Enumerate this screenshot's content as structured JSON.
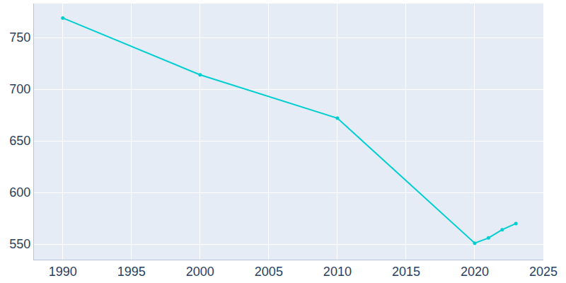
{
  "chart_data": {
    "type": "line",
    "x": [
      1990,
      2000,
      2010,
      2020,
      2021,
      2022,
      2023
    ],
    "values": [
      769,
      714,
      672,
      551,
      556,
      564,
      570
    ],
    "color": "#00ced1",
    "marker": "circle",
    "xlim": [
      1987.9,
      2025
    ],
    "xticks": [
      1990,
      1995,
      2000,
      2005,
      2010,
      2015,
      2020,
      2025
    ],
    "ylim": [
      535,
      783
    ],
    "yticks": [
      550,
      600,
      650,
      700,
      750
    ],
    "grid": true
  }
}
